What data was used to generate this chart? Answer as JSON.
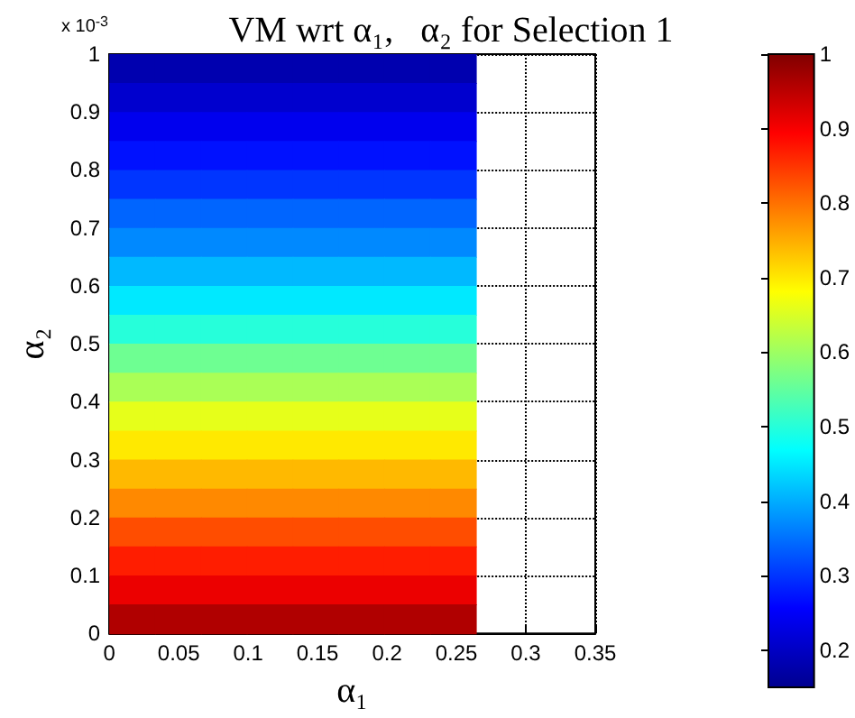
{
  "chart_data": {
    "type": "heatmap",
    "title": "VM wrt α₁,   α₂ for Selection 1",
    "xlabel": "α₁",
    "ylabel": "α₂",
    "annotations": [
      "x 10$^{-3}$"
    ],
    "x": [
      0.0165,
      0.0495,
      0.0825,
      0.1155,
      0.1485,
      0.1815,
      0.2145,
      0.2475
    ],
    "y": [
      0.975,
      0.925,
      0.875,
      0.825,
      0.775,
      0.725,
      0.675,
      0.625,
      0.575,
      0.525,
      0.475,
      0.425,
      0.375,
      0.325,
      0.275,
      0.225,
      0.175,
      0.125,
      0.075,
      0.025
    ],
    "cells": [
      [
        0.18,
        0.18,
        0.18,
        0.18,
        0.18,
        0.18,
        0.18,
        0.18
      ],
      [
        0.21,
        0.21,
        0.21,
        0.21,
        0.21,
        0.21,
        0.21,
        0.21
      ],
      [
        0.24,
        0.24,
        0.24,
        0.24,
        0.24,
        0.24,
        0.24,
        0.24
      ],
      [
        0.27,
        0.27,
        0.27,
        0.27,
        0.27,
        0.27,
        0.27,
        0.27
      ],
      [
        0.3,
        0.3,
        0.3,
        0.3,
        0.3,
        0.3,
        0.3,
        0.3
      ],
      [
        0.34,
        0.34,
        0.34,
        0.34,
        0.34,
        0.34,
        0.34,
        0.34
      ],
      [
        0.37,
        0.37,
        0.37,
        0.37,
        0.37,
        0.37,
        0.37,
        0.37
      ],
      [
        0.41,
        0.41,
        0.41,
        0.41,
        0.41,
        0.41,
        0.41,
        0.41
      ],
      [
        0.45,
        0.45,
        0.45,
        0.45,
        0.45,
        0.45,
        0.45,
        0.45
      ],
      [
        0.5,
        0.5,
        0.5,
        0.5,
        0.5,
        0.5,
        0.5,
        0.5
      ],
      [
        0.56,
        0.56,
        0.56,
        0.56,
        0.56,
        0.56,
        0.56,
        0.56
      ],
      [
        0.61,
        0.61,
        0.61,
        0.61,
        0.61,
        0.61,
        0.61,
        0.61
      ],
      [
        0.66,
        0.66,
        0.66,
        0.66,
        0.66,
        0.66,
        0.66,
        0.66
      ],
      [
        0.7,
        0.7,
        0.7,
        0.7,
        0.7,
        0.7,
        0.7,
        0.7
      ],
      [
        0.74,
        0.74,
        0.74,
        0.74,
        0.74,
        0.74,
        0.74,
        0.74
      ],
      [
        0.78,
        0.78,
        0.78,
        0.78,
        0.78,
        0.78,
        0.78,
        0.78
      ],
      [
        0.83,
        0.83,
        0.83,
        0.83,
        0.83,
        0.83,
        0.83,
        0.83
      ],
      [
        0.87,
        0.87,
        0.87,
        0.87,
        0.87,
        0.87,
        0.87,
        0.87
      ],
      [
        0.91,
        0.91,
        0.91,
        0.91,
        0.91,
        0.91,
        0.91,
        0.91
      ],
      [
        0.96,
        0.96,
        0.96,
        0.96,
        0.96,
        0.96,
        0.96,
        0.96
      ]
    ],
    "xlim": [
      0,
      0.35
    ],
    "xticks": [
      0,
      0.05,
      0.1,
      0.15,
      0.2,
      0.25,
      0.3,
      0.35
    ],
    "ylim": [
      0,
      1
    ],
    "yticks": [
      0,
      0.1,
      0.2,
      0.3,
      0.4,
      0.5,
      0.6,
      0.7,
      0.8,
      0.9,
      1
    ],
    "clim": [
      0.15,
      1
    ],
    "cticks": [
      0.2,
      0.3,
      0.4,
      0.5,
      0.6,
      0.7,
      0.8,
      0.9,
      1
    ],
    "grid": true,
    "line_style": "dotted"
  }
}
